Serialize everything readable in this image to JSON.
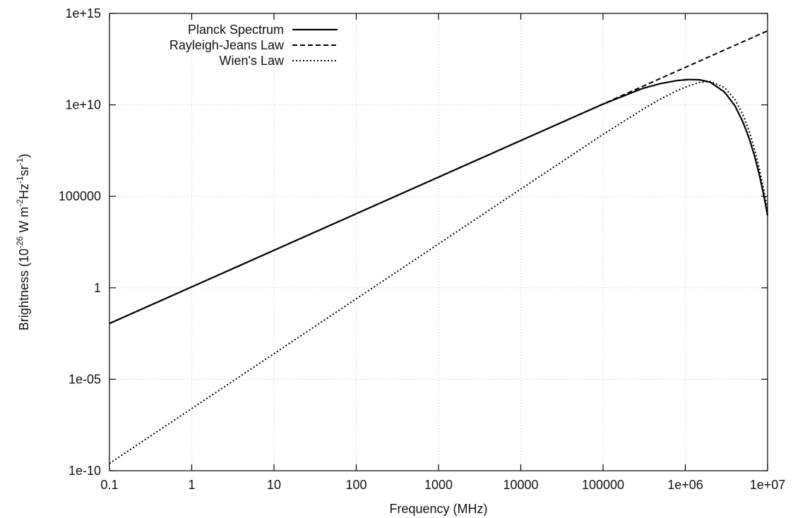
{
  "chart_data": {
    "type": "line",
    "xlabel": "Frequency (MHz)",
    "ylabel": {
      "base": "Brightness (10",
      "exp1": "-26",
      "mid1": " W m",
      "exp2": "-2",
      "mid2": "Hz",
      "exp3": "-1",
      "mid3": "sr",
      "exp4": "-1",
      "tail": ")"
    },
    "x_scale": "log",
    "y_scale": "log",
    "xlim": [
      0.1,
      10000000
    ],
    "ylim": [
      1e-10,
      1000000000000000.0
    ],
    "grid": true,
    "legend_position": "top-left",
    "x_ticks": [
      {
        "value": 0.1,
        "label": "0.1"
      },
      {
        "value": 1,
        "label": "1"
      },
      {
        "value": 10,
        "label": "10"
      },
      {
        "value": 100,
        "label": "100"
      },
      {
        "value": 1000,
        "label": "1000"
      },
      {
        "value": 10000,
        "label": "10000"
      },
      {
        "value": 100000,
        "label": "100000"
      },
      {
        "value": 1000000,
        "label": "1e+06"
      },
      {
        "value": 10000000,
        "label": "1e+07"
      }
    ],
    "y_ticks": [
      {
        "value": 1e-10,
        "label": "1e-10"
      },
      {
        "value": 1e-05,
        "label": "1e-05"
      },
      {
        "value": 1,
        "label": "1"
      },
      {
        "value": 100000.0,
        "label": "100000"
      },
      {
        "value": 10000000000.0,
        "label": "1e+10"
      },
      {
        "value": 1000000000000000.0,
        "label": "1e+15"
      }
    ],
    "series": [
      {
        "name": "Planck Spectrum",
        "style": "solid",
        "x": [
          0.1,
          1,
          10,
          100,
          1000,
          10000,
          100000,
          300000,
          500000,
          800000,
          1100000,
          1500000,
          2000000,
          3000000,
          4000000,
          5000000,
          6000000,
          7000000,
          8000000,
          9000000,
          10000000
        ],
        "y": [
          0.0112,
          1.12,
          112,
          11200,
          1120000,
          112000000,
          11000000000,
          78000000000,
          146000000000,
          214000000000,
          243000000000,
          234000000000,
          176000000000,
          50000000000,
          9000000000,
          1200000000,
          140000000,
          14000000,
          1300000,
          110000,
          9000
        ]
      },
      {
        "name": "Rayleigh-Jeans Law",
        "style": "dashed",
        "x": [
          0.1,
          1,
          10,
          100,
          1000,
          10000,
          100000,
          1000000,
          10000000
        ],
        "y": [
          0.0112,
          1.12,
          112,
          11200,
          1120000,
          112000000,
          11200000000,
          1120000000000,
          112000000000000
        ]
      },
      {
        "name": "Wien's Law",
        "style": "dotted",
        "x": [
          0.1,
          1,
          10,
          100,
          1000,
          10000,
          100000,
          300000,
          500000,
          800000,
          1100000,
          1500000,
          2000000,
          3000000,
          4000000,
          5000000,
          6000000,
          7000000,
          8000000,
          9000000,
          10000000
        ],
        "y": [
          2.5e-10,
          2.5e-07,
          0.00025,
          0.25,
          250,
          250000,
          243000000,
          5500000000,
          21000000000,
          61000000000,
          109000000000,
          170000000000,
          190000000000,
          88000000000,
          20000000000,
          3000000000,
          350000000,
          33000000,
          2800000,
          220000,
          17000
        ]
      }
    ]
  }
}
